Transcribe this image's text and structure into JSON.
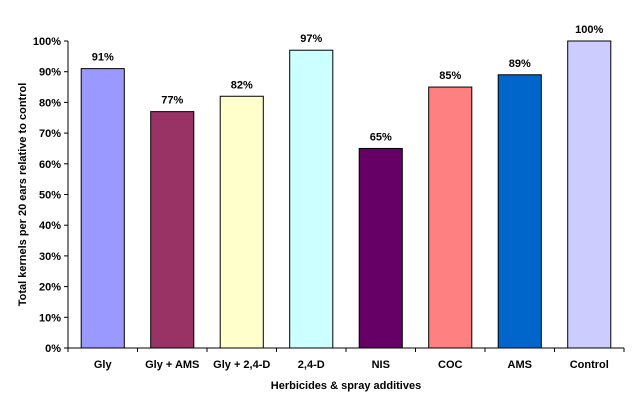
{
  "chart_data": {
    "type": "bar",
    "xlabel": "Herbicides & spray additives",
    "ylabel": "Total kernels per 20 ears relative to control",
    "ylim": [
      0,
      100
    ],
    "yticks": [
      0,
      10,
      20,
      30,
      40,
      50,
      60,
      70,
      80,
      90,
      100
    ],
    "ytick_labels": [
      "0%",
      "10%",
      "20%",
      "30%",
      "40%",
      "50%",
      "60%",
      "70%",
      "80%",
      "90%",
      "100%"
    ],
    "categories": [
      "Gly",
      "Gly + AMS",
      "Gly + 2,4-D",
      "2,4-D",
      "NIS",
      "COC",
      "AMS",
      "Control"
    ],
    "values": [
      91,
      77,
      82,
      97,
      65,
      85,
      89,
      100
    ],
    "data_labels": [
      "91%",
      "77%",
      "82%",
      "97%",
      "65%",
      "85%",
      "89%",
      "100%"
    ],
    "bar_colors": [
      "#9999ff",
      "#993366",
      "#ffffcc",
      "#ccffff",
      "#660066",
      "#ff8080",
      "#0066cc",
      "#ccccff"
    ],
    "grid": false,
    "legend": "none"
  }
}
